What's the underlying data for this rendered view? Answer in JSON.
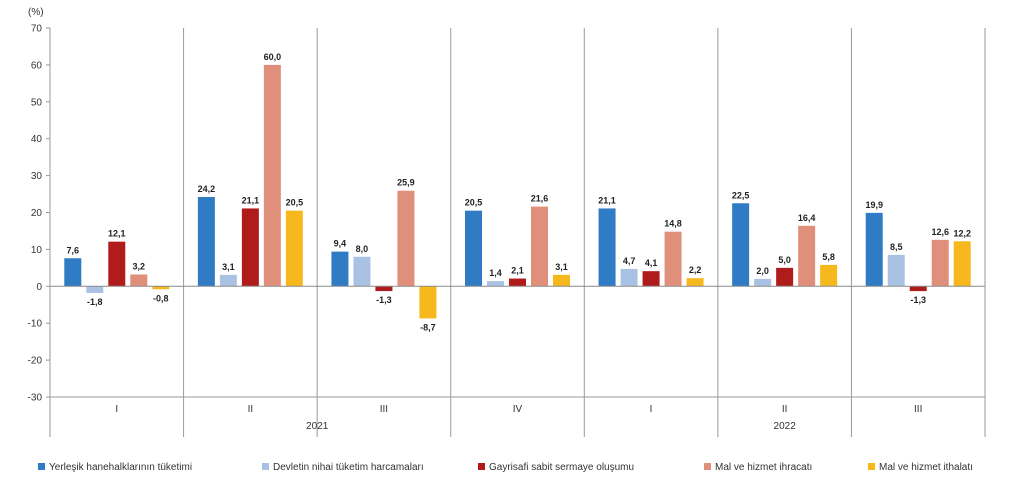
{
  "chart_data": {
    "type": "bar",
    "unit_label": "(%)",
    "ylim": [
      -30,
      70
    ],
    "y_ticks": [
      -30,
      -20,
      -10,
      0,
      10,
      20,
      30,
      40,
      50,
      60,
      70
    ],
    "categories": [
      "I",
      "II",
      "III",
      "IV",
      "I",
      "II",
      "III"
    ],
    "groups": [
      {
        "label": "2021",
        "span": [
          0,
          3
        ]
      },
      {
        "label": "2022",
        "span": [
          4,
          6
        ]
      }
    ],
    "series": [
      {
        "name": "Yerleşik hanehalklarının tüketimi",
        "color": "#2f7cc4",
        "values": [
          7.6,
          24.2,
          9.4,
          20.5,
          21.1,
          22.5,
          19.9
        ]
      },
      {
        "name": "Devletin nihai tüketim harcamaları",
        "color": "#a9c2e3",
        "values": [
          -1.8,
          3.1,
          8.0,
          1.4,
          4.7,
          2.0,
          8.5
        ]
      },
      {
        "name": "Gayrisafi sabit sermaye oluşumu",
        "color": "#b01c1c",
        "values": [
          12.1,
          21.1,
          -1.3,
          2.1,
          4.1,
          5.0,
          -1.3
        ]
      },
      {
        "name": "Mal ve hizmet ihracatı",
        "color": "#e0907a",
        "values": [
          3.2,
          60.0,
          25.9,
          21.6,
          14.8,
          16.4,
          12.6
        ]
      },
      {
        "name": "Mal ve hizmet ithalatı",
        "color": "#f7b81e",
        "values": [
          -0.8,
          20.5,
          -8.7,
          3.1,
          2.2,
          5.8,
          12.2
        ]
      }
    ],
    "value_labels": [
      [
        "7,6",
        "24,2",
        "9,4",
        "20,5",
        "21,1",
        "22,5",
        "19,9"
      ],
      [
        "-1,8",
        "3,1",
        "8,0",
        "1,4",
        "4,7",
        "2,0",
        "8,5"
      ],
      [
        "12,1",
        "21,1",
        "-1,3",
        "2,1",
        "4,1",
        "5,0",
        "-1,3"
      ],
      [
        "3,2",
        "60,0",
        "25,9",
        "21,6",
        "14,8",
        "16,4",
        "12,6"
      ],
      [
        "-0,8",
        "20,5",
        "-8,7",
        "3,1",
        "2,2",
        "5,8",
        "12,2"
      ]
    ],
    "gridlines": false,
    "legend_position": "bottom"
  }
}
